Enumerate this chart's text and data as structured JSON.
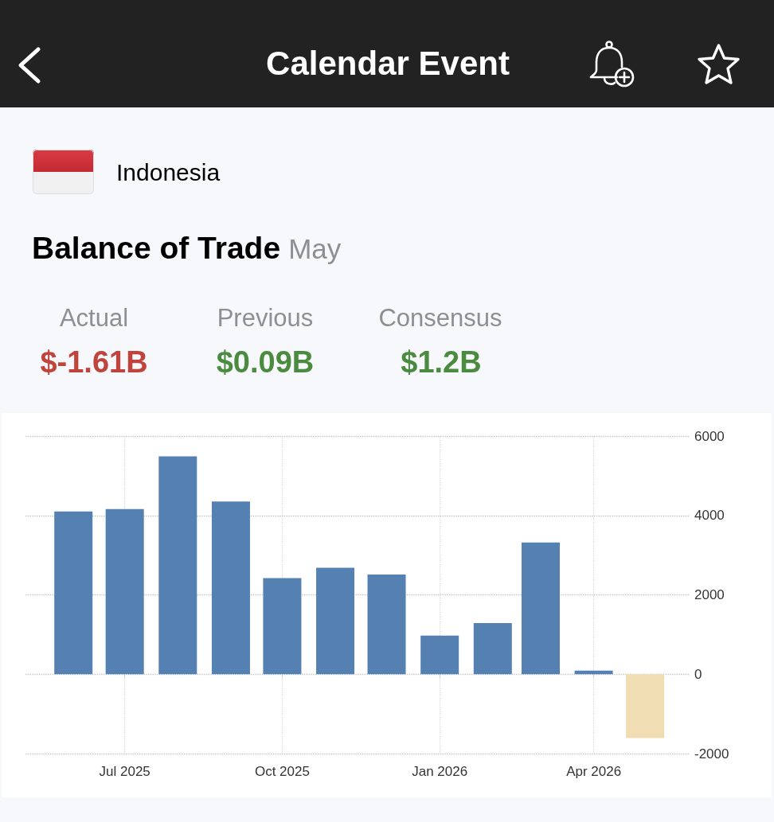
{
  "chart_data": {
    "type": "bar",
    "title": "Balance of Trade",
    "subtitle": "May",
    "annotations": [
      "Calendar Event",
      "Indonesia",
      "Actual",
      "$-1.61B",
      "Previous",
      "$0.09B",
      "Consensus",
      "$1.2B"
    ],
    "x": [
      "2025-06",
      "2025-07",
      "2025-08",
      "2025-09",
      "2025-10",
      "2025-11",
      "2025-12",
      "2026-01",
      "2026-02",
      "2026-03",
      "2026-04",
      "2026-05"
    ],
    "values": [
      4100,
      4160,
      5490,
      4350,
      2420,
      2680,
      2510,
      970,
      1290,
      3320,
      90,
      -1610
    ],
    "colors": [
      "#5580b2",
      "#5580b2",
      "#5580b2",
      "#5580b2",
      "#5580b2",
      "#5580b2",
      "#5580b2",
      "#5580b2",
      "#5580b2",
      "#5580b2",
      "#5580b2",
      "#f0ddb3"
    ],
    "xlim": [
      "2025-05-04",
      "2026-05-27"
    ],
    "xticks": [
      {
        "value": "2025-07",
        "label": "Jul 2025"
      },
      {
        "value": "2025-10",
        "label": "Oct 2025"
      },
      {
        "value": "2026-01",
        "label": "Jan 2026"
      },
      {
        "value": "2026-04",
        "label": "Apr 2026"
      }
    ],
    "ylim": [
      -2000,
      6000
    ],
    "yticks": [
      -2000,
      0,
      2000,
      4000,
      6000
    ],
    "grid": true
  }
}
